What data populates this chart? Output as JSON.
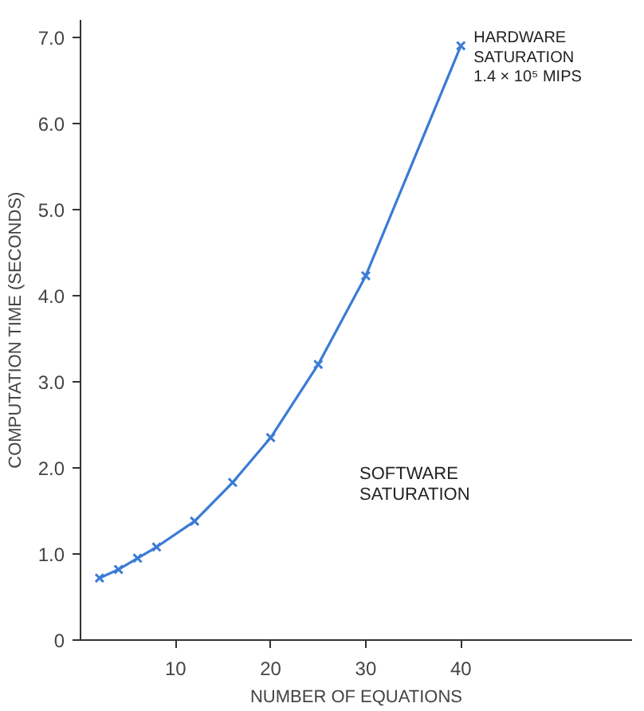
{
  "chart_data": {
    "type": "line",
    "xlabel": "NUMBER OF EQUATIONS",
    "ylabel": "COMPUTATION TIME (SECONDS)",
    "x": [
      2,
      4,
      6,
      8,
      12,
      16,
      20,
      25,
      30,
      40
    ],
    "series": [
      {
        "color": "#3a7bd5",
        "values": [
          0.72,
          0.82,
          0.95,
          1.08,
          1.38,
          1.83,
          2.35,
          3.2,
          4.23,
          6.9
        ]
      }
    ],
    "xlim": [
      0,
      58
    ],
    "ylim": [
      0,
      7.2
    ],
    "xticks": [
      10,
      20,
      30,
      40
    ],
    "yticks": [
      0,
      {
        "value": 1,
        "label": "1.0"
      },
      {
        "value": 2,
        "label": "2.0"
      },
      {
        "value": 3,
        "label": "3.0"
      },
      {
        "value": 4,
        "label": "4.0"
      },
      {
        "value": 5,
        "label": "5.0"
      },
      {
        "value": 6,
        "label": "6.0"
      },
      {
        "value": 7,
        "label": "7.0"
      }
    ],
    "annotations": [
      {
        "text": "HARDWARE\nSATURATION\n1.4 × 10⁵ MIPS",
        "x": 40,
        "y": 6.9
      },
      "SOFTWARE\nSATURATION"
    ],
    "grid": false,
    "marker": "cross",
    "line_style": "solid"
  }
}
